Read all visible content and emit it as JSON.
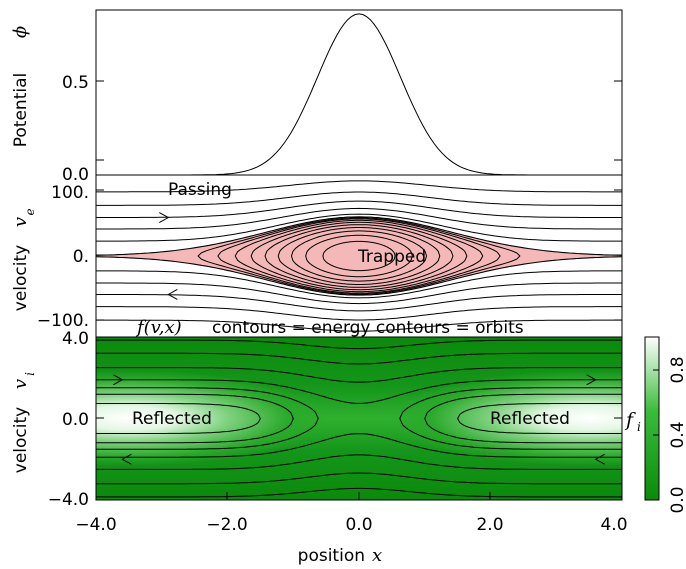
{
  "panels": {
    "potential": {
      "ylabel": "Potential",
      "ysymbol": "ϕ",
      "ytick_labels": [
        "0.0",
        "0.5"
      ]
    },
    "electron": {
      "ylabel": "velocity",
      "ysymbol": "v",
      "ysub": "e",
      "ytick_labels": [
        "100.",
        "0.",
        "−100."
      ],
      "annotations": {
        "passing": "Passing",
        "trapped": "Trapped"
      }
    },
    "ion": {
      "ylabel": "velocity",
      "ysymbol": "v",
      "ysub": "i",
      "ytick_labels": [
        "4.0",
        "0.0",
        "−4.0"
      ],
      "annotations": {
        "reflected_left": "Reflected",
        "reflected_right": "Reflected"
      }
    }
  },
  "caption": {
    "part1": "f(v,x)",
    "part2": "contours = energy contours = orbits"
  },
  "xaxis": {
    "label": "position",
    "symbol": "x",
    "tick_labels": [
      "−4.0",
      "−2.0",
      "0.0",
      "2.0",
      "4.0"
    ]
  },
  "colorbar": {
    "label": "f",
    "label_sub": "i",
    "tick_labels": [
      "0.0",
      "0.4",
      "0.8"
    ]
  },
  "colors": {
    "trapped_fill": "#f5b8b8",
    "ion_bg": "#0a8a0a",
    "ion_peak": "#ffffff"
  },
  "chart_data": [
    {
      "type": "line",
      "title": "",
      "xlabel": "position x",
      "ylabel": "Potential ϕ",
      "xlim": [
        -4,
        4
      ],
      "ylim": [
        0,
        0.85
      ],
      "x": [
        -4.0,
        -3.0,
        -2.5,
        -2.0,
        -1.5,
        -1.0,
        -0.5,
        0.0,
        0.5,
        1.0,
        1.5,
        2.0,
        2.5,
        3.0,
        4.0
      ],
      "y": [
        0.0,
        0.0,
        0.01,
        0.03,
        0.09,
        0.28,
        0.63,
        0.83,
        0.63,
        0.28,
        0.09,
        0.03,
        0.01,
        0.0,
        0.0
      ]
    },
    {
      "type": "contour",
      "title": "",
      "xlabel": "position x",
      "ylabel": "velocity v_e",
      "xlim": [
        -4,
        4
      ],
      "ylim": [
        -120,
        120
      ],
      "passing_far_field_v": [
        95,
        75,
        57,
        40,
        22,
        -22,
        -40,
        -57,
        -75,
        -95
      ],
      "separatrix_half_width": 58,
      "trapped_orbit_fractions": [
        0.86,
        0.72,
        0.59,
        0.47,
        0.36,
        0.26,
        0.17,
        0.1,
        0.05
      ],
      "arrows": [
        {
          "x": -2.9,
          "v": 57,
          "direction": "right"
        },
        {
          "x": -2.9,
          "v": -57,
          "direction": "left"
        }
      ]
    },
    {
      "type": "heatmap",
      "title": "",
      "xlabel": "position x",
      "ylabel": "velocity v_i",
      "xlim": [
        -4,
        4
      ],
      "ylim": [
        -4,
        4
      ],
      "colorbar_range": [
        0,
        1
      ],
      "colorbar_ticks": [
        0.0,
        0.4,
        0.8
      ],
      "reflected_peak_x": [
        -3.3,
        3.3
      ],
      "passing_contour_v_far": [
        -3.85,
        -3.2,
        -2.5,
        -1.9,
        1.9,
        2.5,
        3.2,
        3.85
      ],
      "reflected_contour_turning_x": [
        1.5,
        1.0,
        0.62
      ],
      "arrows": [
        {
          "x": -3.6,
          "v": 1.9,
          "direction": "right"
        },
        {
          "x": 3.6,
          "v": 1.9,
          "direction": "right"
        },
        {
          "x": -3.6,
          "v": -2.0,
          "direction": "left"
        },
        {
          "x": 3.6,
          "v": -2.0,
          "direction": "left"
        }
      ]
    }
  ]
}
